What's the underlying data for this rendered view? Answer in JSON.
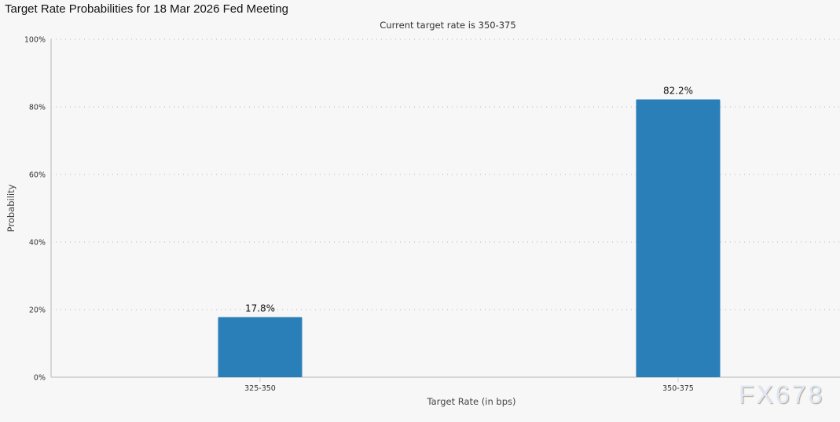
{
  "title": "Target Rate Probabilities for 18 Mar 2026 Fed Meeting",
  "chart_data": {
    "type": "bar",
    "title": "Target Rate Probabilities for 18 Mar 2026 Fed Meeting",
    "subtitle": "Current target rate is 350-375",
    "categories": [
      "325-350",
      "350-375"
    ],
    "values": [
      17.8,
      82.2
    ],
    "data_labels": [
      "17.8%",
      "82.2%"
    ],
    "xlabel": "Target Rate (in bps)",
    "ylabel": "Probability",
    "ylim": [
      0,
      100
    ],
    "yticks": [
      "0%",
      "20%",
      "40%",
      "60%",
      "80%",
      "100%"
    ],
    "grid": true,
    "bar_color": "#2a7fb8"
  },
  "watermark": "FX678"
}
